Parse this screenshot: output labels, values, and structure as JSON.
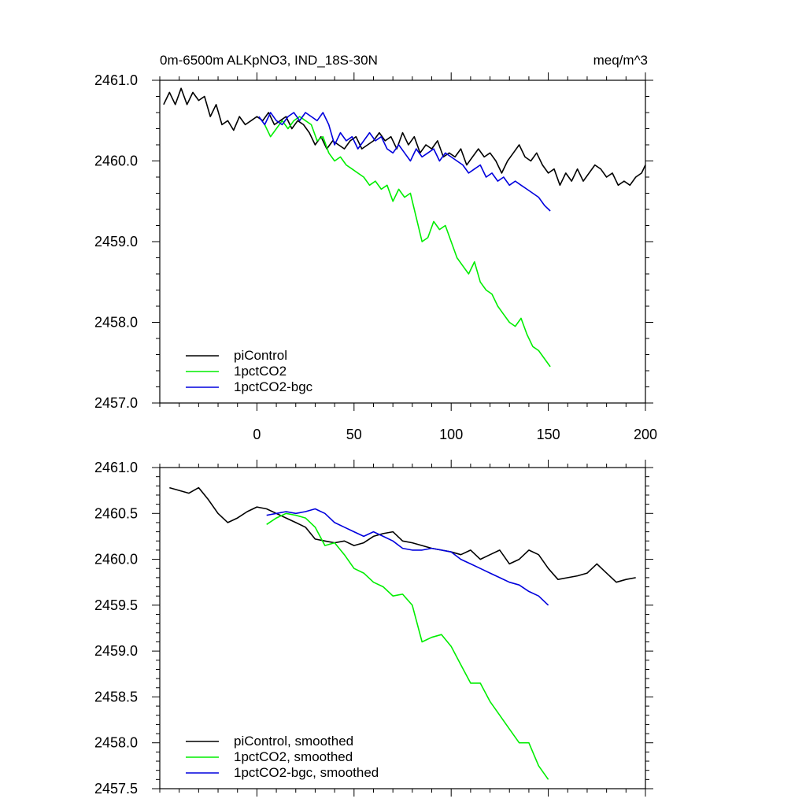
{
  "header": {
    "title_left": "0m-6500m ALKpNO3, IND_18S-30N",
    "title_right": "meq/m^3"
  },
  "colors": {
    "piControl": "#000000",
    "1pctCO2": "#00ee00",
    "1pctCO2-bgc": "#0000dd"
  },
  "chart_data": [
    {
      "type": "line",
      "title": "0m-6500m ALKpNO3, IND_18S-30N",
      "units": "meq/m^3",
      "xlim": [
        -50,
        200
      ],
      "ylim": [
        2457.0,
        2461.0
      ],
      "x_ticks": [
        0,
        50,
        100,
        150,
        200
      ],
      "x_tick_labels": [
        "0",
        "50",
        "100",
        "150",
        "200"
      ],
      "y_ticks": [
        2457.0,
        2458.0,
        2459.0,
        2460.0,
        2461.0
      ],
      "y_tick_labels": [
        "2457.0",
        "2458.0",
        "2459.0",
        "2460.0",
        "2461.0"
      ],
      "legend_position": "bottom-left",
      "series": [
        {
          "name": "piControl",
          "color": "#000000",
          "x": [
            -48,
            -45,
            -42,
            -39,
            -36,
            -33,
            -30,
            -27,
            -24,
            -21,
            -18,
            -15,
            -12,
            -9,
            -6,
            -3,
            0,
            3,
            6,
            9,
            12,
            15,
            18,
            21,
            24,
            27,
            30,
            33,
            36,
            39,
            42,
            45,
            48,
            51,
            54,
            57,
            60,
            63,
            66,
            69,
            72,
            75,
            78,
            81,
            84,
            87,
            90,
            93,
            96,
            99,
            102,
            105,
            108,
            111,
            114,
            117,
            120,
            123,
            126,
            129,
            132,
            135,
            138,
            141,
            144,
            147,
            150,
            153,
            156,
            159,
            162,
            165,
            168,
            171,
            174,
            177,
            180,
            183,
            186,
            189,
            192,
            195,
            198,
            200
          ],
          "y": [
            2460.7,
            2460.85,
            2460.7,
            2460.9,
            2460.7,
            2460.85,
            2460.75,
            2460.8,
            2460.55,
            2460.7,
            2460.45,
            2460.5,
            2460.38,
            2460.55,
            2460.45,
            2460.5,
            2460.55,
            2460.5,
            2460.6,
            2460.45,
            2460.5,
            2460.55,
            2460.4,
            2460.5,
            2460.45,
            2460.35,
            2460.2,
            2460.3,
            2460.15,
            2460.25,
            2460.2,
            2460.15,
            2460.25,
            2460.3,
            2460.15,
            2460.2,
            2460.25,
            2460.35,
            2460.25,
            2460.3,
            2460.15,
            2460.35,
            2460.2,
            2460.3,
            2460.1,
            2460.2,
            2460.15,
            2460.25,
            2460.05,
            2460.1,
            2460.05,
            2460.15,
            2459.95,
            2460.05,
            2460.15,
            2460.05,
            2460.1,
            2460.0,
            2459.85,
            2460.0,
            2460.1,
            2460.2,
            2460.05,
            2460.0,
            2460.1,
            2459.95,
            2459.85,
            2459.9,
            2459.7,
            2459.85,
            2459.75,
            2459.9,
            2459.75,
            2459.85,
            2459.95,
            2459.9,
            2459.8,
            2459.85,
            2459.7,
            2459.75,
            2459.7,
            2459.8,
            2459.85,
            2459.95
          ]
        },
        {
          "name": "1pctCO2",
          "color": "#00ee00",
          "x": [
            4,
            7,
            10,
            13,
            16,
            19,
            22,
            25,
            28,
            31,
            34,
            37,
            40,
            43,
            46,
            49,
            52,
            55,
            58,
            61,
            64,
            67,
            70,
            73,
            76,
            79,
            82,
            85,
            88,
            91,
            94,
            97,
            100,
            103,
            106,
            109,
            112,
            115,
            118,
            121,
            124,
            127,
            130,
            133,
            136,
            139,
            142,
            145,
            148,
            151
          ],
          "y": [
            2460.45,
            2460.3,
            2460.4,
            2460.5,
            2460.4,
            2460.5,
            2460.55,
            2460.5,
            2460.45,
            2460.25,
            2460.3,
            2460.1,
            2460.0,
            2460.05,
            2459.95,
            2459.9,
            2459.85,
            2459.8,
            2459.7,
            2459.75,
            2459.65,
            2459.7,
            2459.5,
            2459.65,
            2459.55,
            2459.6,
            2459.3,
            2459.0,
            2459.05,
            2459.25,
            2459.15,
            2459.2,
            2459.0,
            2458.8,
            2458.7,
            2458.6,
            2458.75,
            2458.5,
            2458.4,
            2458.35,
            2458.2,
            2458.1,
            2458.0,
            2457.95,
            2458.05,
            2457.85,
            2457.7,
            2457.65,
            2457.55,
            2457.45
          ]
        },
        {
          "name": "1pctCO2-bgc",
          "color": "#0000dd",
          "x": [
            1,
            4,
            7,
            10,
            13,
            16,
            19,
            22,
            25,
            28,
            31,
            34,
            37,
            40,
            43,
            46,
            49,
            52,
            55,
            58,
            61,
            64,
            67,
            70,
            73,
            76,
            79,
            82,
            85,
            88,
            91,
            94,
            97,
            100,
            103,
            106,
            109,
            112,
            115,
            118,
            121,
            124,
            127,
            130,
            133,
            136,
            139,
            142,
            145,
            148,
            151
          ],
          "y": [
            2460.55,
            2460.45,
            2460.6,
            2460.5,
            2460.45,
            2460.55,
            2460.6,
            2460.5,
            2460.6,
            2460.55,
            2460.5,
            2460.6,
            2460.45,
            2460.2,
            2460.35,
            2460.25,
            2460.3,
            2460.15,
            2460.25,
            2460.35,
            2460.25,
            2460.3,
            2460.15,
            2460.1,
            2460.2,
            2460.1,
            2460.0,
            2460.15,
            2460.05,
            2460.1,
            2460.15,
            2460.0,
            2460.1,
            2460.05,
            2460.0,
            2459.95,
            2459.85,
            2459.9,
            2459.95,
            2459.8,
            2459.85,
            2459.75,
            2459.8,
            2459.7,
            2459.75,
            2459.7,
            2459.65,
            2459.6,
            2459.55,
            2459.45,
            2459.38
          ]
        }
      ]
    },
    {
      "type": "line",
      "xlim": [
        -50,
        200
      ],
      "ylim": [
        2457.5,
        2461.0
      ],
      "x_ticks": [
        0,
        50,
        100,
        150,
        200
      ],
      "y_ticks": [
        2457.5,
        2458.0,
        2458.5,
        2459.0,
        2459.5,
        2460.0,
        2460.5,
        2461.0
      ],
      "y_tick_labels": [
        "2457.5",
        "2458.0",
        "2458.5",
        "2459.0",
        "2459.5",
        "2460.0",
        "2460.5",
        "2461.0"
      ],
      "legend_position": "bottom-left",
      "series": [
        {
          "name": "piControl, smoothed",
          "color": "#000000",
          "x": [
            -45,
            -40,
            -35,
            -30,
            -25,
            -20,
            -15,
            -10,
            -5,
            0,
            5,
            10,
            15,
            20,
            25,
            30,
            35,
            40,
            45,
            50,
            55,
            60,
            65,
            70,
            75,
            80,
            85,
            90,
            95,
            100,
            105,
            110,
            115,
            120,
            125,
            130,
            135,
            140,
            145,
            150,
            155,
            160,
            165,
            170,
            175,
            180,
            185,
            190,
            195
          ],
          "y": [
            2460.78,
            2460.75,
            2460.72,
            2460.78,
            2460.65,
            2460.5,
            2460.4,
            2460.45,
            2460.52,
            2460.57,
            2460.55,
            2460.5,
            2460.45,
            2460.4,
            2460.35,
            2460.22,
            2460.2,
            2460.18,
            2460.2,
            2460.15,
            2460.18,
            2460.25,
            2460.28,
            2460.3,
            2460.2,
            2460.18,
            2460.15,
            2460.12,
            2460.1,
            2460.08,
            2460.05,
            2460.1,
            2460.0,
            2460.05,
            2460.1,
            2459.95,
            2460.0,
            2460.1,
            2460.05,
            2459.9,
            2459.78,
            2459.8,
            2459.82,
            2459.85,
            2459.95,
            2459.85,
            2459.75,
            2459.78,
            2459.8
          ]
        },
        {
          "name": "1pctCO2, smoothed",
          "color": "#00ee00",
          "x": [
            5,
            10,
            15,
            20,
            25,
            30,
            35,
            40,
            45,
            50,
            55,
            60,
            65,
            70,
            75,
            80,
            85,
            90,
            95,
            100,
            105,
            110,
            115,
            120,
            125,
            130,
            135,
            140,
            145,
            150
          ],
          "y": [
            2460.38,
            2460.45,
            2460.5,
            2460.48,
            2460.45,
            2460.35,
            2460.15,
            2460.18,
            2460.05,
            2459.9,
            2459.85,
            2459.75,
            2459.7,
            2459.6,
            2459.62,
            2459.5,
            2459.1,
            2459.15,
            2459.18,
            2459.05,
            2458.85,
            2458.65,
            2458.65,
            2458.45,
            2458.3,
            2458.15,
            2458.0,
            2458.0,
            2457.75,
            2457.6
          ]
        },
        {
          "name": "1pctCO2-bgc, smoothed",
          "color": "#0000dd",
          "x": [
            5,
            10,
            15,
            20,
            25,
            30,
            35,
            40,
            45,
            50,
            55,
            60,
            65,
            70,
            75,
            80,
            85,
            90,
            95,
            100,
            105,
            110,
            115,
            120,
            125,
            130,
            135,
            140,
            145,
            150
          ],
          "y": [
            2460.48,
            2460.5,
            2460.52,
            2460.5,
            2460.52,
            2460.55,
            2460.5,
            2460.4,
            2460.35,
            2460.3,
            2460.25,
            2460.3,
            2460.25,
            2460.2,
            2460.12,
            2460.1,
            2460.1,
            2460.12,
            2460.1,
            2460.08,
            2460.0,
            2459.95,
            2459.9,
            2459.85,
            2459.8,
            2459.75,
            2459.72,
            2459.65,
            2459.6,
            2459.5
          ]
        }
      ]
    }
  ]
}
